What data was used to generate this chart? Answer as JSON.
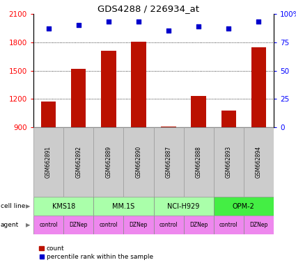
{
  "title": "GDS4288 / 226934_at",
  "samples": [
    "GSM662891",
    "GSM662892",
    "GSM662889",
    "GSM662890",
    "GSM662887",
    "GSM662888",
    "GSM662893",
    "GSM662894"
  ],
  "counts": [
    1175,
    1520,
    1710,
    1805,
    910,
    1230,
    1080,
    1745
  ],
  "percentile_ranks": [
    87,
    90,
    93,
    93,
    85,
    89,
    87,
    93
  ],
  "cell_lines": [
    {
      "name": "KMS18",
      "span": [
        0,
        2
      ],
      "color": "#aaffaa"
    },
    {
      "name": "MM.1S",
      "span": [
        2,
        4
      ],
      "color": "#aaffaa"
    },
    {
      "name": "NCI-H929",
      "span": [
        4,
        6
      ],
      "color": "#aaffaa"
    },
    {
      "name": "OPM-2",
      "span": [
        6,
        8
      ],
      "color": "#44ee44"
    }
  ],
  "agents": [
    "control",
    "DZNep",
    "control",
    "DZNep",
    "control",
    "DZNep",
    "control",
    "DZNep"
  ],
  "agent_color": "#ee88ee",
  "ylim_left": [
    900,
    2100
  ],
  "yticks_left": [
    900,
    1200,
    1500,
    1800,
    2100
  ],
  "ylim_right": [
    0,
    100
  ],
  "yticks_right": [
    0,
    25,
    50,
    75,
    100
  ],
  "ytick_right_labels": [
    "0",
    "25",
    "50",
    "75",
    "100%"
  ],
  "bar_color": "#bb1100",
  "dot_color": "#0000cc",
  "bar_width": 0.5,
  "grid_color": "#000000",
  "background_color": "#ffffff"
}
